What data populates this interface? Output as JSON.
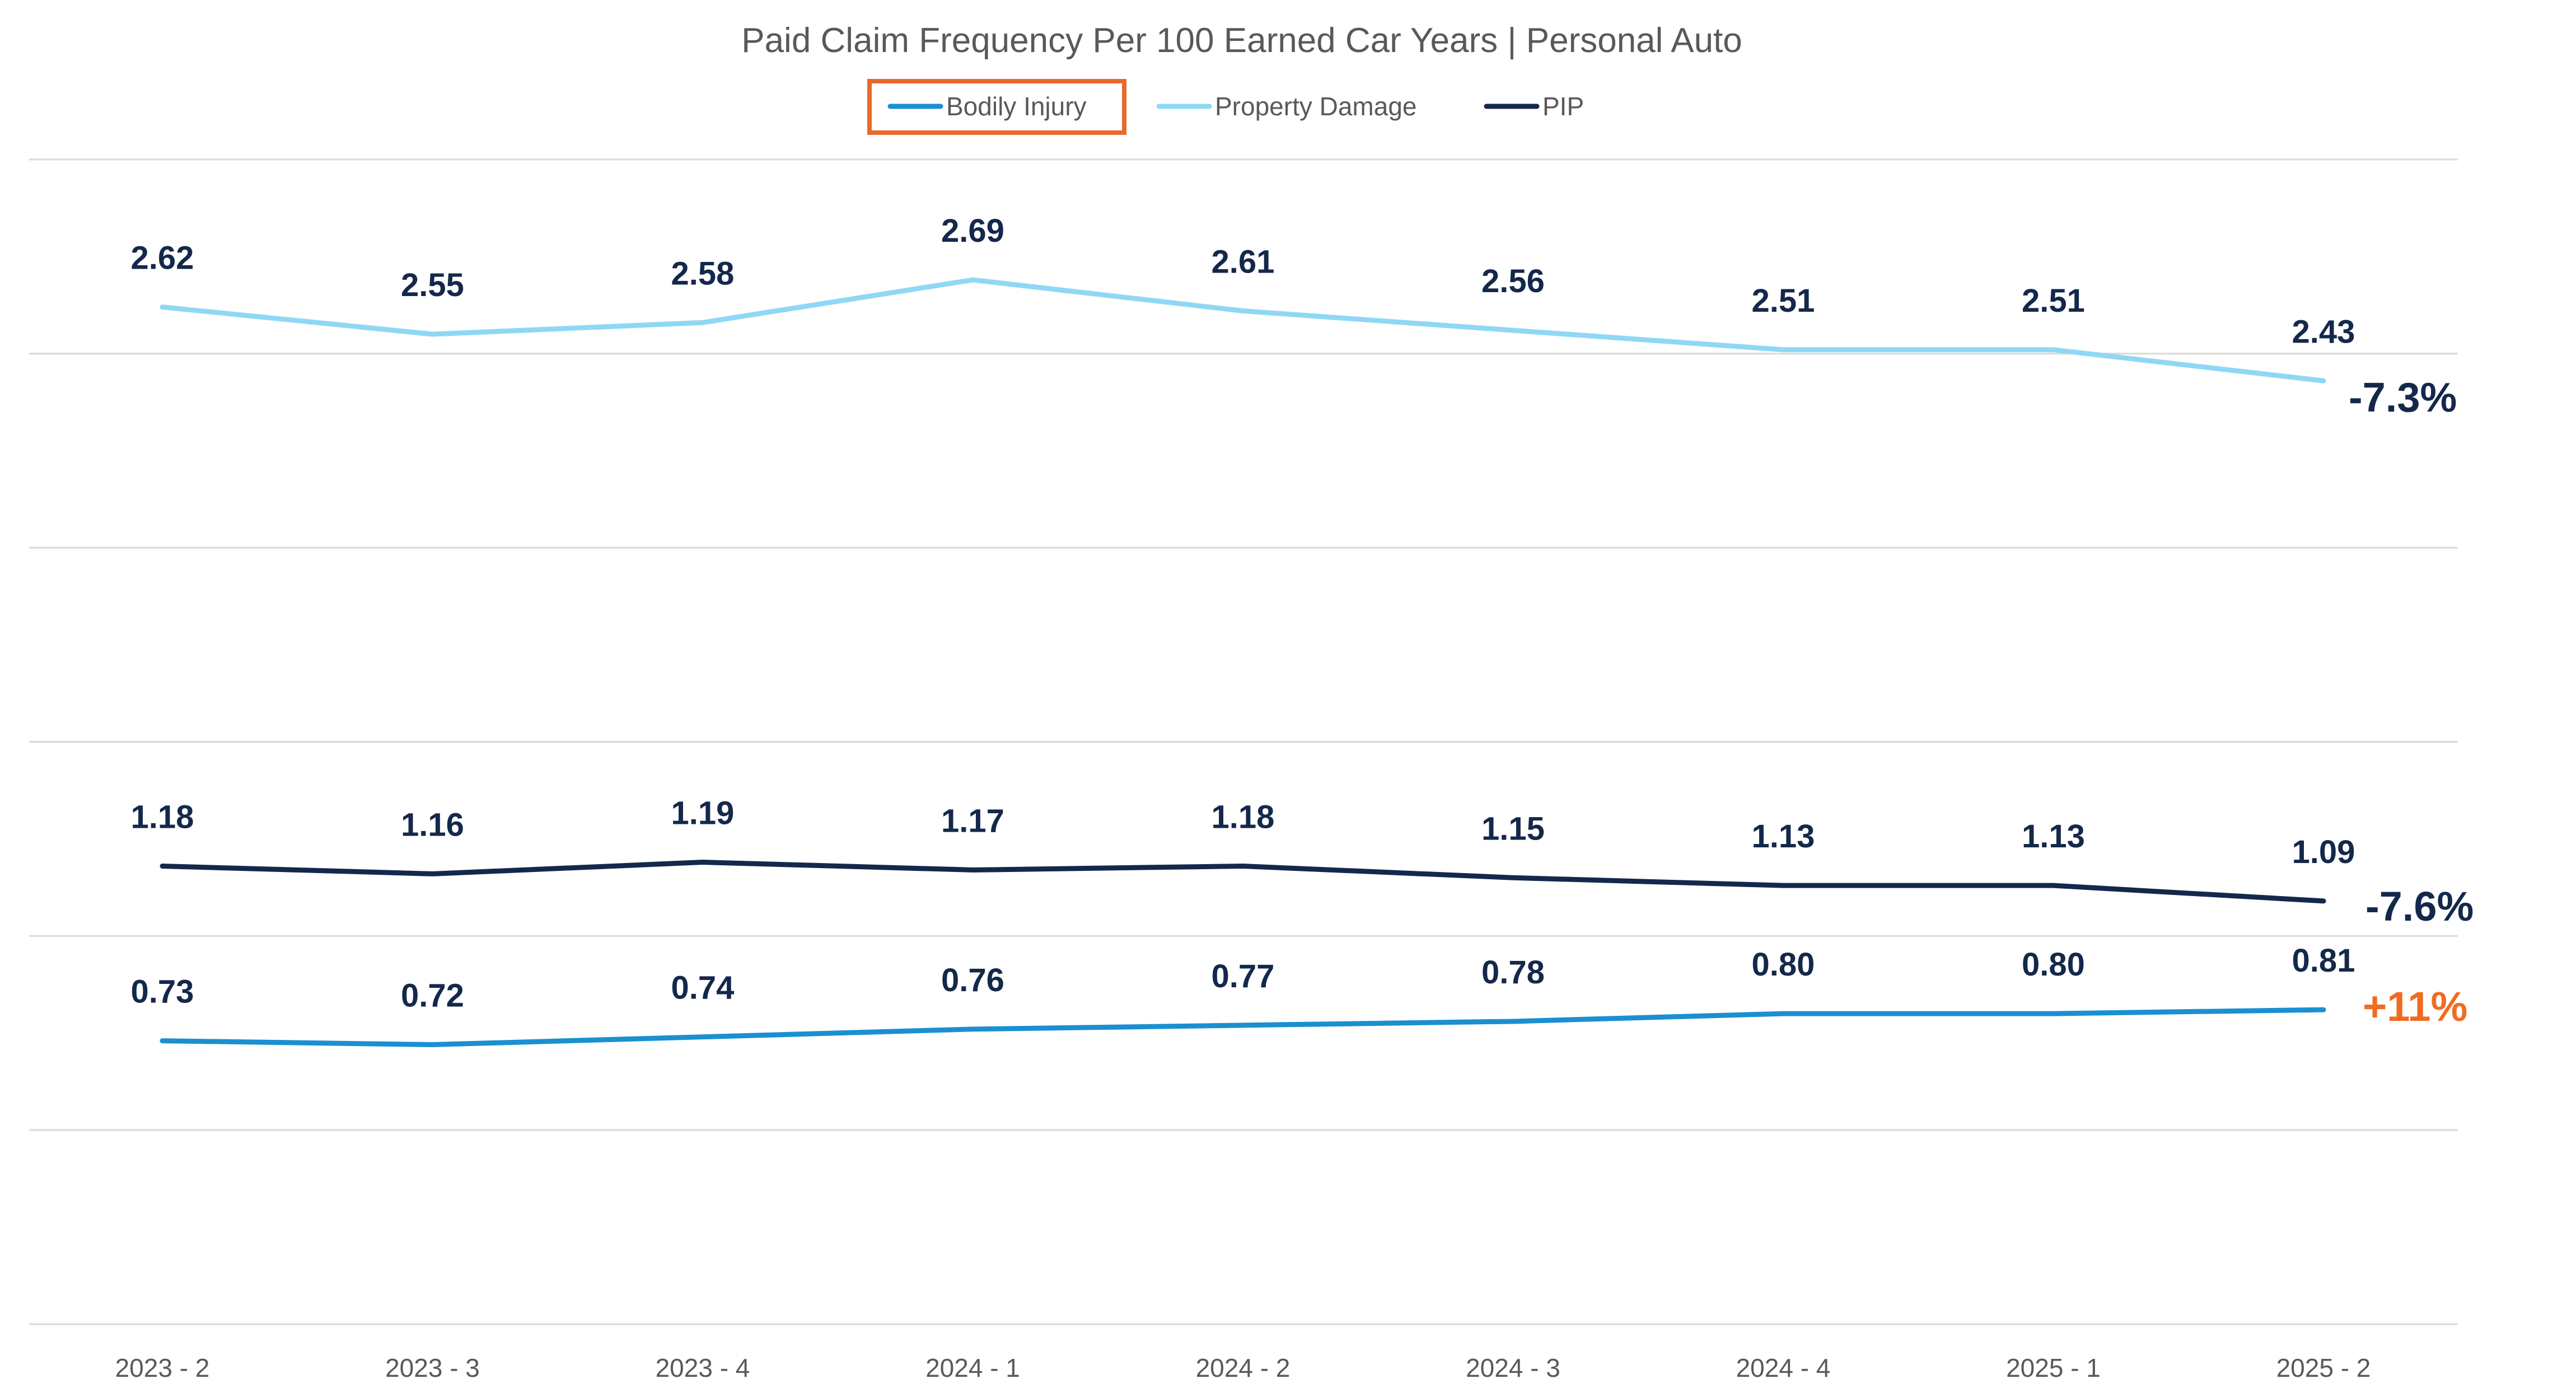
{
  "chart_data": {
    "type": "line",
    "title": "Paid Claim Frequency Per 100 Earned Car Years | Personal Auto",
    "xlabel": "",
    "ylabel": "",
    "categories": [
      "2023 - 2",
      "2023 - 3",
      "2023 - 4",
      "2024 - 1",
      "2024 - 2",
      "2024 - 3",
      "2024 - 4",
      "2025 - 1",
      "2025 - 2"
    ],
    "ylim": [
      0,
      3.0
    ],
    "grid": true,
    "legend_position": "top-center",
    "series": [
      {
        "name": "Bodily Injury",
        "color": "#1A8FD1",
        "values": [
          0.73,
          0.72,
          0.74,
          0.76,
          0.77,
          0.78,
          0.8,
          0.8,
          0.81
        ],
        "labels": [
          "0.73",
          "0.72",
          "0.74",
          "0.76",
          "0.77",
          "0.78",
          "0.80",
          "0.80",
          "0.81"
        ],
        "change": "+11%",
        "change_color": "#F26B21",
        "highlighted": true
      },
      {
        "name": "Property Damage",
        "color": "#8FD8F5",
        "values": [
          2.62,
          2.55,
          2.58,
          2.69,
          2.61,
          2.56,
          2.51,
          2.51,
          2.43
        ],
        "labels": [
          "2.62",
          "2.55",
          "2.58",
          "2.69",
          "2.61",
          "2.56",
          "2.51",
          "2.51",
          "2.43"
        ],
        "change": "-7.3%",
        "change_color": "#14284B",
        "highlighted": false
      },
      {
        "name": "PIP",
        "color": "#14284B",
        "values": [
          1.18,
          1.16,
          1.19,
          1.17,
          1.18,
          1.15,
          1.13,
          1.13,
          1.09
        ],
        "labels": [
          "1.18",
          "1.16",
          "1.19",
          "1.17",
          "1.18",
          "1.15",
          "1.13",
          "1.13",
          "1.09"
        ],
        "change": "-7.6%",
        "change_color": "#14284B",
        "highlighted": false
      }
    ],
    "highlight_color": "#E8692A",
    "grid_color": "#D9D9D9"
  }
}
